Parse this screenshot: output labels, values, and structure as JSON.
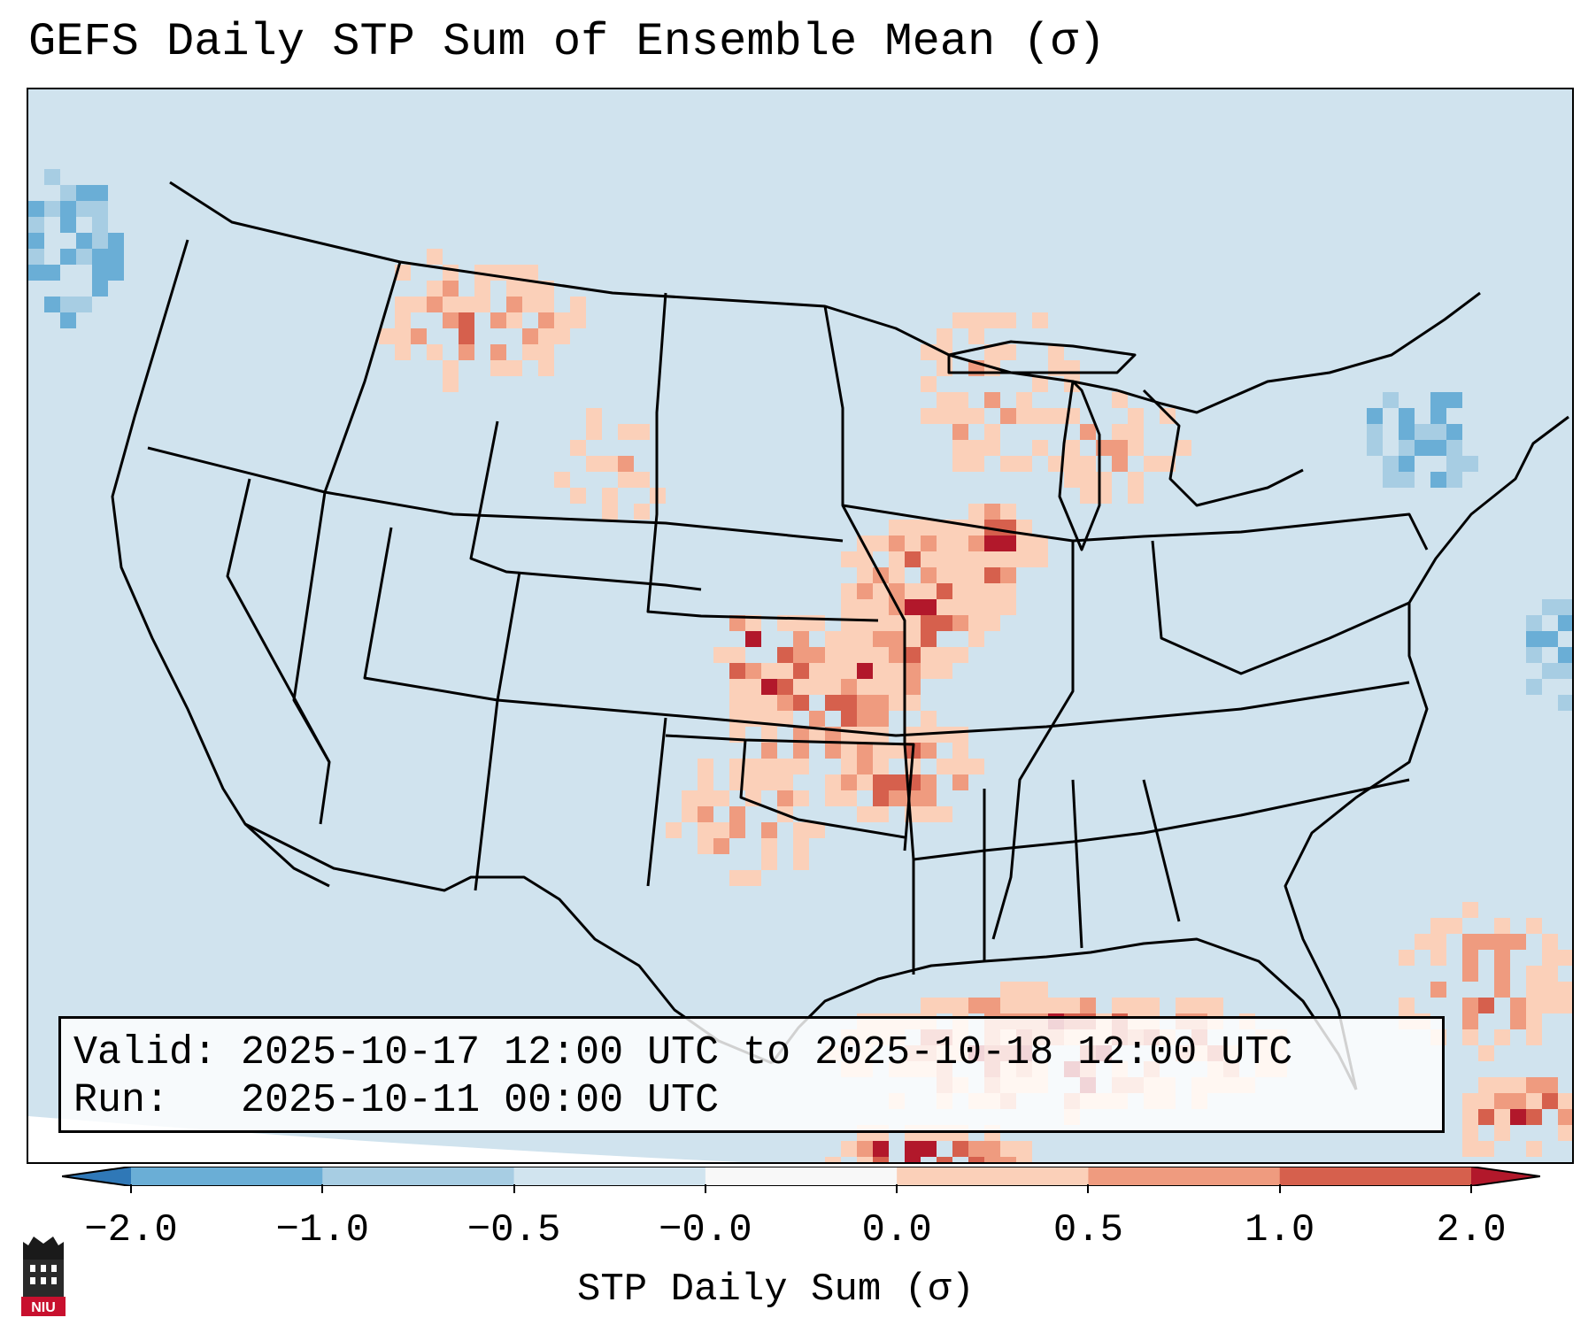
{
  "title": "GEFS Daily STP Sum of Ensemble Mean (σ)",
  "info": {
    "valid_label": "Valid:",
    "valid_value": "2025-10-17 12:00 UTC to 2025-10-18 12:00 UTC",
    "run_label": "Run:",
    "run_value": "2025-10-11 00:00 UTC"
  },
  "colorbar": {
    "label": "STP Daily Sum (σ)",
    "ticks": [
      "−2.0",
      "−1.0",
      "−0.5",
      "−0.0",
      "0.0",
      "0.5",
      "1.0",
      "2.0"
    ],
    "colors": [
      "#2f78b7",
      "#6aaed6",
      "#a7cde3",
      "#d1e4ef",
      "#f8f8f8",
      "#fbd0b9",
      "#ef9b7f",
      "#d6604d",
      "#b2182b"
    ]
  },
  "map": {
    "projection": "conic",
    "region": "CONUS",
    "ocean_color": "#d0e3ee",
    "outside_projection_color": "#ffffff"
  },
  "logo": {
    "text": "NIU",
    "icon": "niu-logo"
  }
}
